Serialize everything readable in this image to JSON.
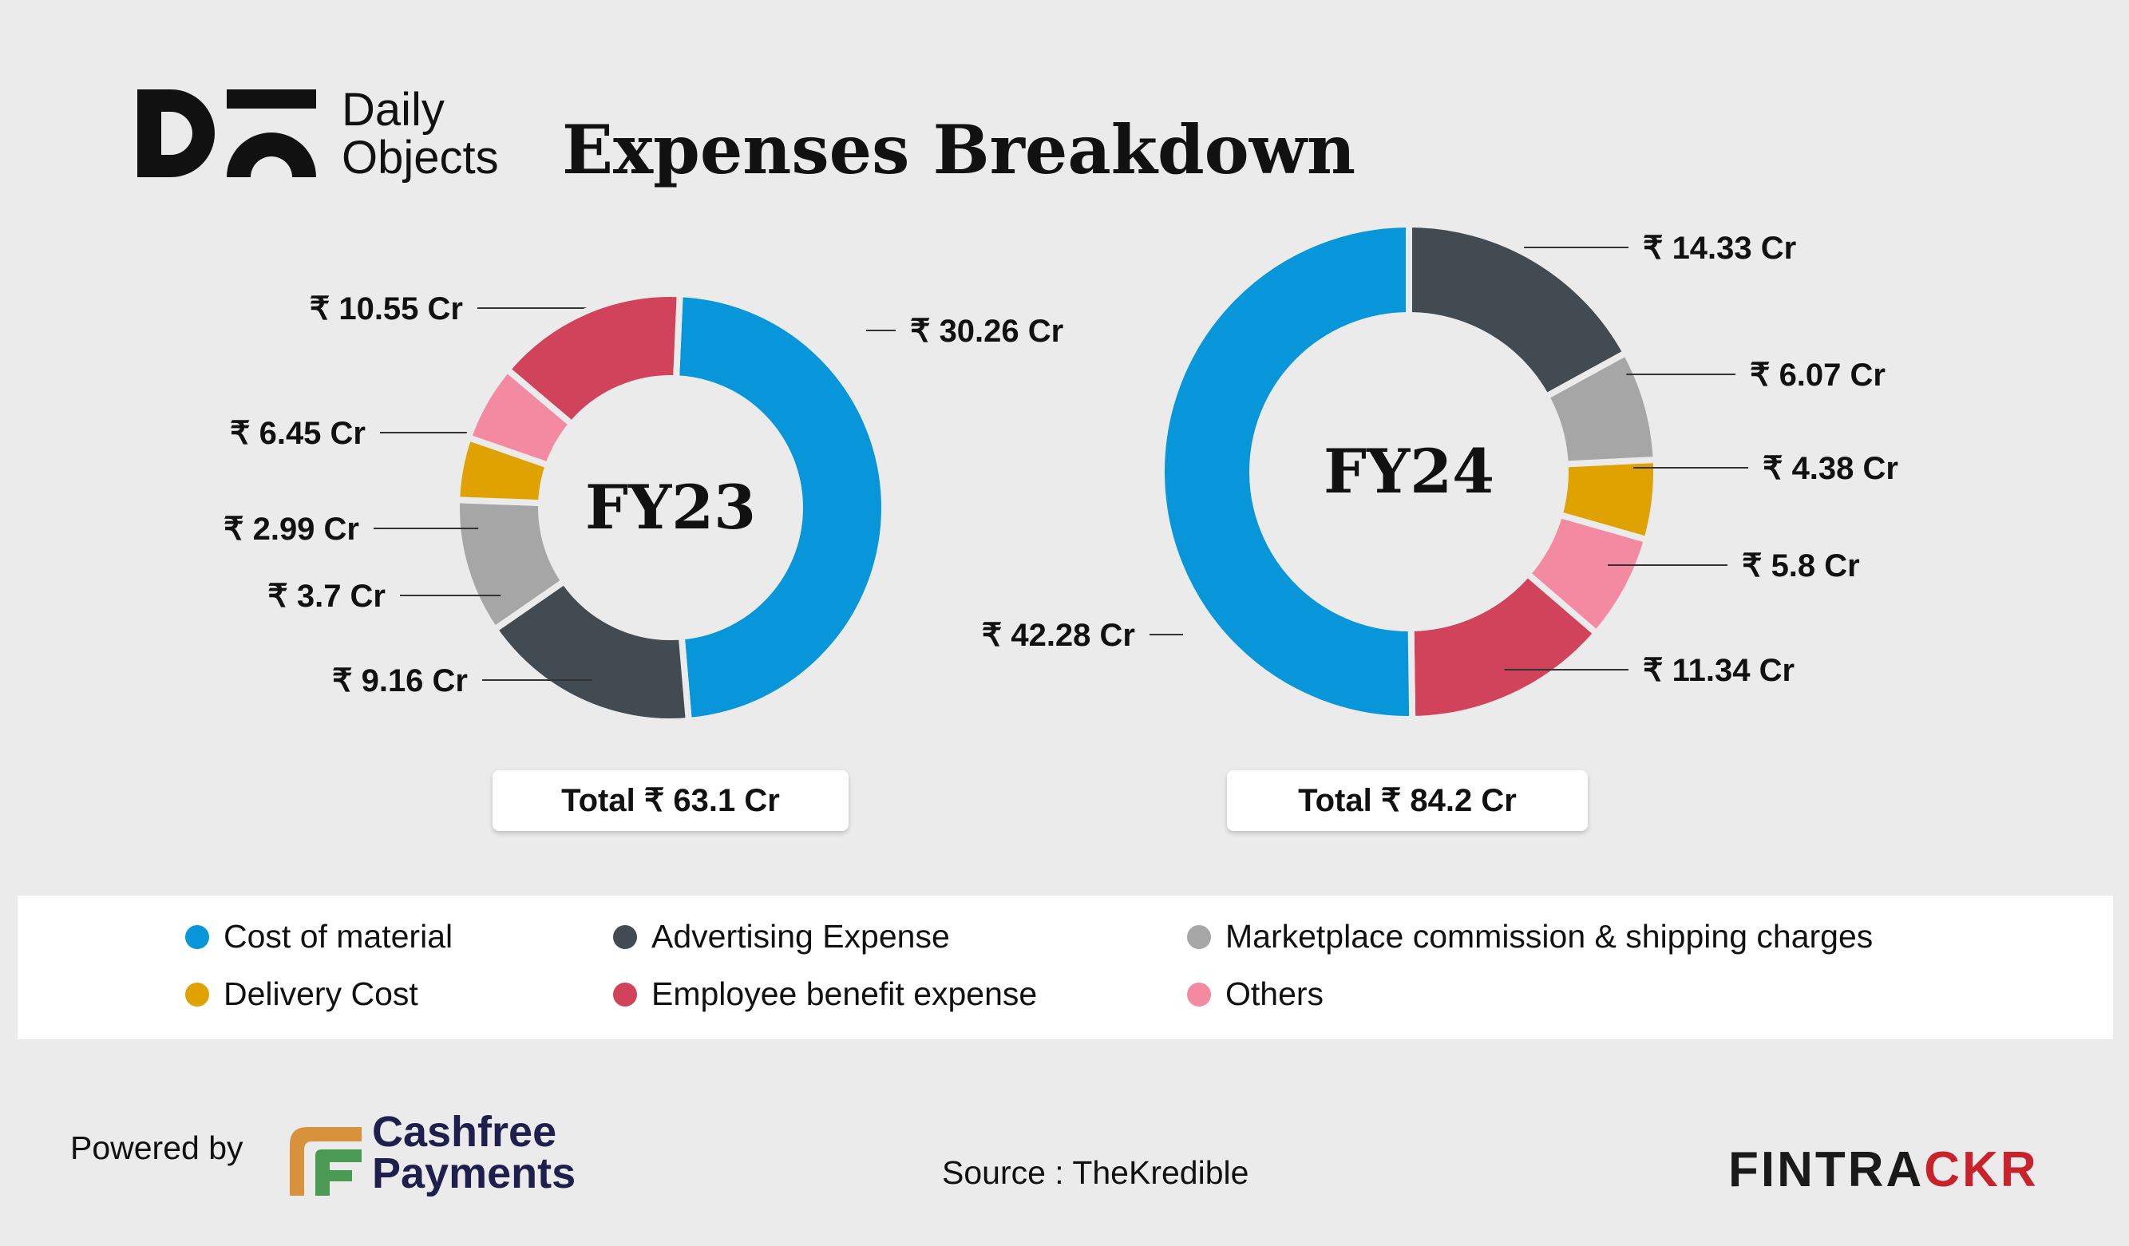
{
  "header": {
    "brand_line1": "Daily",
    "brand_line2": "Objects",
    "title": "Expenses Breakdown"
  },
  "currency_symbol": "₹",
  "chart_data": [
    {
      "type": "pie",
      "title": "FY23",
      "total_label": "Total ₹ 63.1 Cr",
      "categories": [
        "Cost of material",
        "Advertising Expense",
        "Marketplace commission & shipping charges",
        "Delivery Cost",
        "Others",
        "Employee benefit expense"
      ],
      "values": [
        30.26,
        10.55,
        6.45,
        2.99,
        3.7,
        9.16
      ],
      "labels": [
        "₹ 30.26 Cr",
        "₹ 10.55 Cr",
        "₹ 6.45 Cr",
        "₹ 2.99 Cr",
        "₹ 3.7 Cr",
        "₹ 9.16 Cr"
      ],
      "colors": [
        "#0796da",
        "#424b51",
        "#a6a6a6",
        "#e0a200",
        "#f48aa1",
        "#d0435a"
      ]
    },
    {
      "type": "pie",
      "title": "FY24",
      "total_label": "Total ₹ 84.2 Cr",
      "categories": [
        "Advertising Expense",
        "Marketplace commission & shipping charges",
        "Delivery Cost",
        "Others",
        "Employee benefit expense",
        "Cost of material"
      ],
      "values": [
        14.33,
        6.07,
        4.38,
        5.8,
        11.34,
        42.28
      ],
      "labels": [
        "₹ 14.33 Cr",
        "₹ 6.07 Cr",
        "₹ 4.38 Cr",
        "₹ 5.8 Cr",
        "₹ 11.34 Cr",
        "₹ 42.28 Cr"
      ],
      "colors": [
        "#424b51",
        "#a6a6a6",
        "#e0a200",
        "#f48aa1",
        "#d0435a",
        "#0796da"
      ]
    }
  ],
  "legend": [
    {
      "label": "Cost of material",
      "color": "#0796da"
    },
    {
      "label": "Advertising Expense",
      "color": "#424b51"
    },
    {
      "label": "Marketplace commission & shipping charges",
      "color": "#a6a6a6"
    },
    {
      "label": "Delivery Cost",
      "color": "#e0a200"
    },
    {
      "label": "Employee benefit expense",
      "color": "#d0435a"
    },
    {
      "label": "Others",
      "color": "#f48aa1"
    }
  ],
  "footer": {
    "powered_by": "Powered by",
    "cashfree_line1": "Cashfree",
    "cashfree_line2": "Payments",
    "source": "Source : TheKredible",
    "fintrackr_a": "FINTRA",
    "fintrackr_b": "CKR"
  }
}
